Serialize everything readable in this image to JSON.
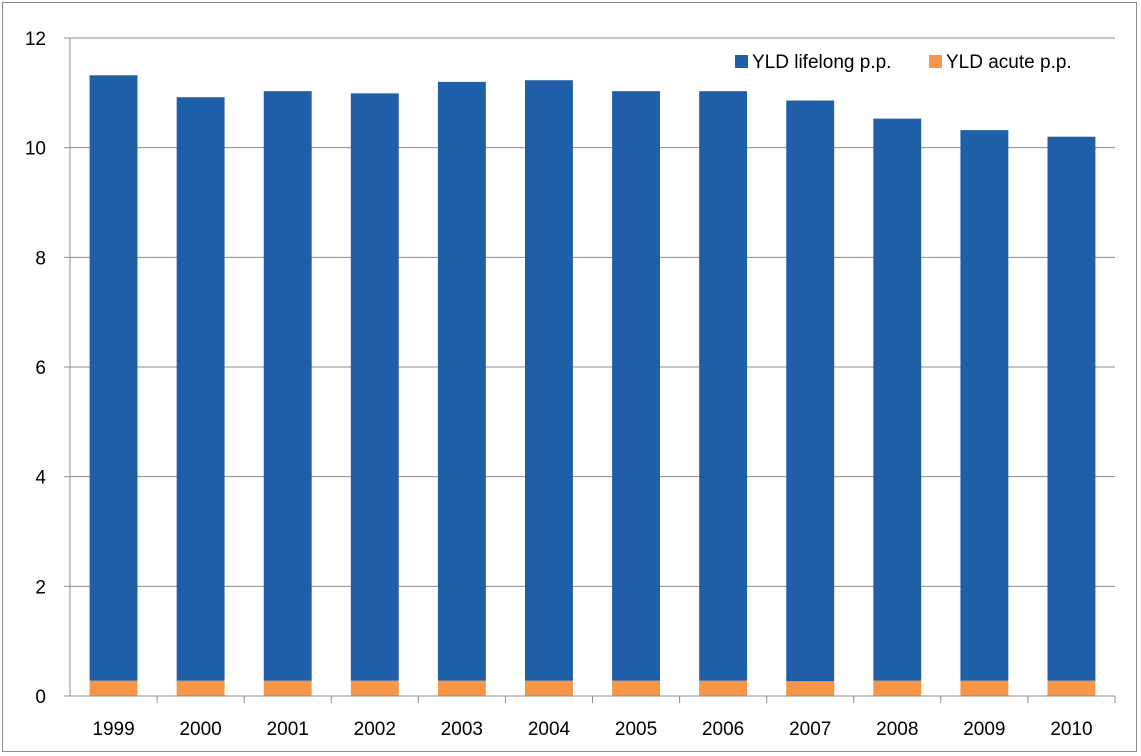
{
  "chart_data": {
    "type": "bar",
    "stacked": true,
    "categories": [
      "1999",
      "2000",
      "2001",
      "2002",
      "2003",
      "2004",
      "2005",
      "2006",
      "2007",
      "2008",
      "2009",
      "2010"
    ],
    "series": [
      {
        "name": "YLD acute p.p.",
        "color": "#f79646",
        "values": [
          0.28,
          0.28,
          0.28,
          0.28,
          0.28,
          0.28,
          0.28,
          0.28,
          0.27,
          0.28,
          0.28,
          0.28
        ]
      },
      {
        "name": "YLD lifelong p.p.",
        "color": "#1f5ea8",
        "values": [
          11.04,
          10.64,
          10.75,
          10.71,
          10.92,
          10.95,
          10.75,
          10.75,
          10.59,
          10.25,
          10.04,
          9.92
        ]
      }
    ],
    "legend_order": [
      "YLD lifelong p.p.",
      "YLD acute p.p."
    ],
    "ylim": [
      0,
      12
    ],
    "yticks": [
      0,
      2,
      4,
      6,
      8,
      10,
      12
    ],
    "grid": true,
    "legend_position": "top-right",
    "title": "",
    "xlabel": "",
    "ylabel": ""
  }
}
